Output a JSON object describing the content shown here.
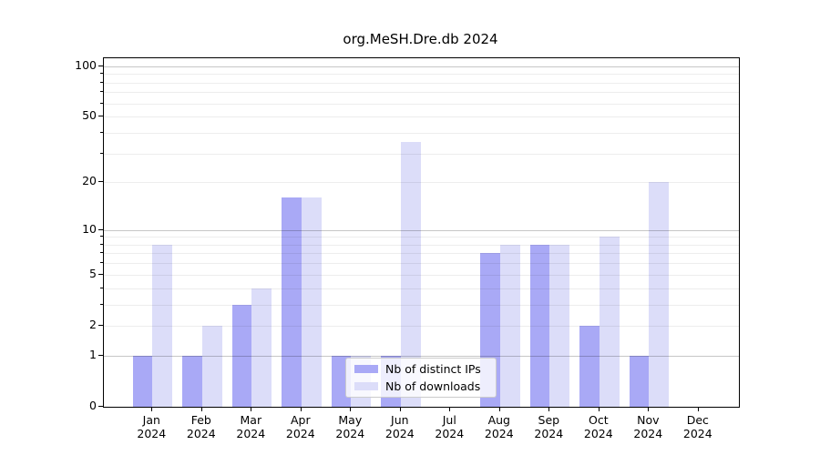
{
  "title": "org.MeSH.Dre.db 2024",
  "chart_data": {
    "type": "bar",
    "title": "org.MeSH.Dre.db 2024",
    "categories": [
      "Jan 2024",
      "Feb 2024",
      "Mar 2024",
      "Apr 2024",
      "May 2024",
      "Jun 2024",
      "Jul 2024",
      "Aug 2024",
      "Sep 2024",
      "Oct 2024",
      "Nov 2024",
      "Dec 2024"
    ],
    "series": [
      {
        "name": "Nb of distinct IPs",
        "color": "#a9a9f6",
        "values": [
          1,
          1,
          3,
          16,
          1,
          1,
          0,
          7,
          8,
          2,
          1,
          0
        ]
      },
      {
        "name": "Nb of downloads",
        "color": "#dcddf9",
        "values": [
          8,
          2,
          4,
          16,
          1,
          35,
          0,
          8,
          8,
          9,
          20,
          0
        ]
      }
    ],
    "xlabel": "",
    "ylabel": "",
    "y_scale": "log1p",
    "ylim": [
      0,
      111
    ],
    "y_ticks": [
      0,
      1,
      2,
      5,
      10,
      20,
      50,
      100
    ],
    "y_major_gridlines": [
      1,
      10,
      100
    ],
    "y_minor_gridlines": [
      2,
      3,
      4,
      5,
      6,
      7,
      8,
      9,
      20,
      30,
      40,
      50,
      60,
      70,
      80,
      90
    ],
    "grid": true,
    "legend_position": "lower-center",
    "colors": {
      "distinct_ips_bar": "#a9a9f6",
      "downloads_bar": "#dcddf9",
      "major_grid": "#c6c6c6",
      "minor_grid": "#ededed",
      "spine": "#000000",
      "text": "#000000",
      "background": "#ffffff"
    }
  }
}
